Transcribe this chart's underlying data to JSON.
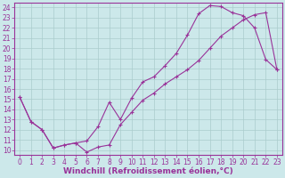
{
  "xlabel": "Windchill (Refroidissement éolien,°C)",
  "xlim": [
    -0.5,
    23.5
  ],
  "ylim": [
    9.5,
    24.5
  ],
  "xticks": [
    0,
    1,
    2,
    3,
    4,
    5,
    6,
    7,
    8,
    9,
    10,
    11,
    12,
    13,
    14,
    15,
    16,
    17,
    18,
    19,
    20,
    21,
    22,
    23
  ],
  "yticks": [
    10,
    11,
    12,
    13,
    14,
    15,
    16,
    17,
    18,
    19,
    20,
    21,
    22,
    23,
    24
  ],
  "bg_color": "#cce8ea",
  "grid_color": "#aacccc",
  "line_color": "#993399",
  "curve1_x": [
    0,
    1,
    2,
    3,
    4,
    5,
    6,
    7,
    8,
    9,
    10,
    11,
    12,
    13,
    14,
    15,
    16,
    17,
    18,
    19,
    20,
    21,
    22,
    23
  ],
  "curve1_y": [
    15.2,
    12.8,
    12.0,
    10.2,
    10.5,
    10.7,
    10.9,
    12.3,
    14.7,
    13.0,
    15.1,
    16.7,
    17.2,
    18.3,
    19.5,
    21.3,
    23.4,
    24.2,
    24.1,
    23.5,
    23.2,
    22.0,
    18.9,
    17.9
  ],
  "curve2_x": [
    0,
    1,
    2,
    3,
    4,
    5,
    6,
    7,
    8,
    9,
    10,
    11,
    12,
    13,
    14,
    15,
    16,
    17,
    18,
    19,
    20,
    21,
    22,
    23
  ],
  "curve2_y": [
    15.2,
    12.8,
    12.0,
    10.2,
    10.5,
    10.7,
    9.8,
    10.3,
    10.5,
    12.5,
    13.7,
    14.9,
    15.6,
    16.5,
    17.2,
    17.9,
    18.8,
    20.0,
    21.2,
    22.0,
    22.8,
    23.3,
    23.5,
    17.9
  ],
  "font_color": "#993399",
  "tick_fontsize": 5.5,
  "label_fontsize": 6.5
}
